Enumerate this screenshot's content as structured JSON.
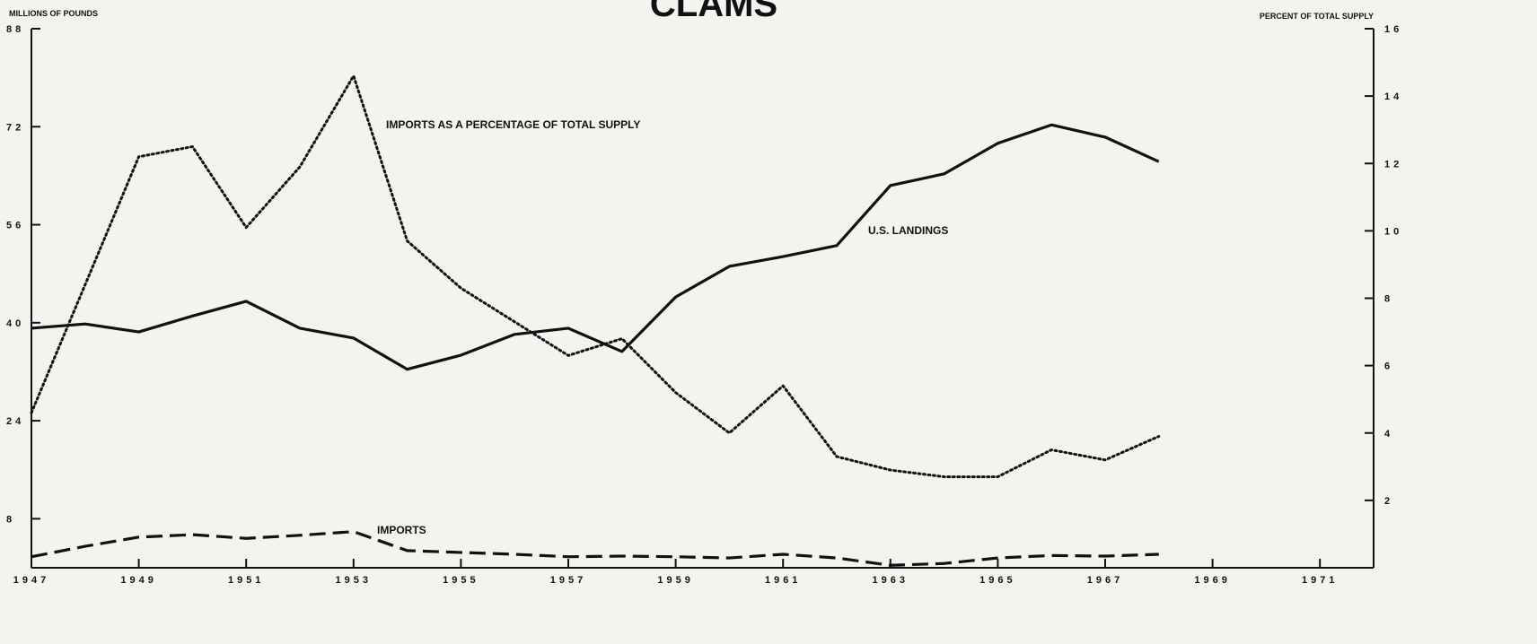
{
  "chart_data": {
    "type": "line",
    "title": "CLAMS",
    "y_label": "MILLIONS OF POUNDS",
    "y2_label": "PERCENT OF TOTAL SUPPLY",
    "x": [
      1947,
      1948,
      1949,
      1950,
      1951,
      1952,
      1953,
      1954,
      1955,
      1956,
      1957,
      1958,
      1959,
      1960,
      1961,
      1962,
      1963,
      1964,
      1965,
      1966,
      1967,
      1968
    ],
    "xlim": [
      1947,
      1972
    ],
    "xticks": [
      1947,
      1949,
      1951,
      1953,
      1955,
      1957,
      1959,
      1961,
      1963,
      1965,
      1967,
      1969,
      1971
    ],
    "ylim": [
      0,
      88
    ],
    "yticks": [
      8,
      24,
      40,
      56,
      72,
      88
    ],
    "y2lim": [
      0,
      16
    ],
    "y2ticks": [
      2,
      4,
      6,
      8,
      10,
      12,
      14,
      16
    ],
    "series": [
      {
        "name": "U.S. LANDINGS",
        "color": "#111111",
        "style": "solid",
        "values": [
          39.1,
          39.8,
          38.5,
          41.1,
          43.5,
          39.1,
          37.5,
          32.4,
          34.7,
          38.1,
          39.1,
          35.3,
          44.2,
          49.2,
          50.8,
          52.6,
          62.4,
          64.3,
          69.3,
          72.3,
          70.3,
          66.3
        ]
      },
      {
        "name": "IMPORTS",
        "color": "#111111",
        "style": "dashed",
        "values": [
          1.8,
          3.5,
          5.0,
          5.4,
          4.8,
          5.3,
          5.9,
          2.8,
          2.5,
          2.2,
          1.8,
          1.9,
          1.8,
          1.6,
          2.2,
          1.6,
          0.4,
          0.7,
          1.6,
          2.0,
          1.9,
          2.2
        ]
      },
      {
        "name": "IMPORTS AS A PERCENTAGE OF TOTAL SUPPLY",
        "color": "#111111",
        "style": "dotted",
        "axis": "y2",
        "values": [
          4.6,
          8.4,
          12.2,
          12.5,
          10.1,
          11.9,
          14.6,
          9.7,
          8.3,
          7.3,
          6.3,
          6.8,
          5.2,
          4.0,
          5.4,
          3.3,
          2.9,
          2.7,
          2.7,
          3.5,
          3.2,
          3.9
        ]
      }
    ]
  }
}
